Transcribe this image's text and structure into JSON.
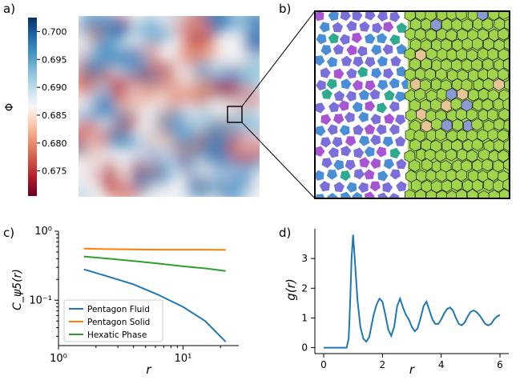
{
  "panels": {
    "a": "a)",
    "b": "b)",
    "c": "c)",
    "d": "d)"
  },
  "chart_data": [
    {
      "panel": "a",
      "type": "heatmap",
      "colorbar_label": "Φ",
      "colorbar_ticks": [
        "0.675",
        "0.680",
        "0.685",
        "0.690",
        "0.695",
        "0.700"
      ],
      "colorbar_tick_values": [
        0.675,
        0.68,
        0.685,
        0.69,
        0.695,
        0.7
      ],
      "colorbar_range": [
        0.6705,
        0.7025
      ],
      "colormap": [
        "#67001f",
        "#b2182b",
        "#d6604d",
        "#f4a582",
        "#fddbc7",
        "#f7f7f7",
        "#d1e5f0",
        "#92c5de",
        "#4393c3",
        "#2166ac",
        "#053061"
      ]
    },
    {
      "panel": "b",
      "type": "other",
      "description_left": "pentagon particles",
      "description_right": "voronoi tessellation",
      "colors": {
        "purple": "#a855d4",
        "violet": "#7b6fd9",
        "blue": "#4a8fd6",
        "teal": "#2eaa8f",
        "green": "#9fd44b",
        "tan": "#e5c593",
        "slate": "#8a9bd4"
      }
    },
    {
      "panel": "c",
      "type": "line",
      "xscale": "log",
      "yscale": "log",
      "xlabel": "r",
      "ylabel": "C_ψ5(r)",
      "xlim": [
        1,
        28
      ],
      "ylim": [
        0.022,
        1.0
      ],
      "xticks": [
        "10⁰",
        "10¹"
      ],
      "yticks": [
        "10⁻¹",
        "10⁰"
      ],
      "series": [
        {
          "name": "Pentagon Fluid",
          "color": "#1f77b4",
          "x": [
            1.6,
            2.5,
            4.0,
            6.3,
            10.0,
            15.0,
            22.0
          ],
          "y": [
            0.28,
            0.22,
            0.17,
            0.12,
            0.08,
            0.05,
            0.025
          ]
        },
        {
          "name": "Pentagon Solid",
          "color": "#ff7f0e",
          "x": [
            1.6,
            2.5,
            4.0,
            6.3,
            10.0,
            15.0,
            22.0
          ],
          "y": [
            0.56,
            0.55,
            0.545,
            0.54,
            0.54,
            0.54,
            0.535
          ]
        },
        {
          "name": "Hexatic Phase",
          "color": "#2ca02c",
          "x": [
            1.6,
            2.5,
            4.0,
            6.3,
            10.0,
            15.0,
            22.0
          ],
          "y": [
            0.43,
            0.4,
            0.37,
            0.34,
            0.31,
            0.29,
            0.265
          ]
        }
      ],
      "legend": "bottom-left"
    },
    {
      "panel": "d",
      "type": "line",
      "xlabel": "r",
      "ylabel": "g(r)",
      "xlim": [
        -0.3,
        6.3
      ],
      "ylim": [
        -0.2,
        4.0
      ],
      "xticks": [
        "0",
        "2",
        "4",
        "6"
      ],
      "xtick_values": [
        0,
        2,
        4,
        6
      ],
      "yticks": [
        "0",
        "1",
        "2",
        "3"
      ],
      "ytick_values": [
        0,
        1,
        2,
        3
      ],
      "series": [
        {
          "name": "g(r)",
          "color": "#1f77b4",
          "x": [
            0.0,
            0.5,
            0.78,
            0.85,
            0.9,
            0.95,
            1.0,
            1.05,
            1.15,
            1.25,
            1.35,
            1.45,
            1.55,
            1.7,
            1.8,
            1.9,
            2.0,
            2.1,
            2.2,
            2.3,
            2.4,
            2.5,
            2.6,
            2.7,
            2.8,
            2.9,
            3.0,
            3.1,
            3.2,
            3.3,
            3.4,
            3.5,
            3.6,
            3.7,
            3.8,
            3.9,
            4.0,
            4.1,
            4.2,
            4.3,
            4.4,
            4.5,
            4.6,
            4.7,
            4.8,
            4.9,
            5.0,
            5.1,
            5.2,
            5.3,
            5.4,
            5.5,
            5.6,
            5.7,
            5.8,
            5.9,
            6.0
          ],
          "y": [
            0.0,
            0.0,
            0.0,
            0.3,
            1.5,
            3.0,
            3.8,
            3.1,
            1.6,
            0.7,
            0.3,
            0.2,
            0.35,
            1.1,
            1.45,
            1.65,
            1.55,
            1.1,
            0.6,
            0.4,
            0.7,
            1.4,
            1.65,
            1.35,
            1.1,
            0.95,
            0.7,
            0.55,
            0.65,
            1.0,
            1.4,
            1.55,
            1.25,
            0.95,
            0.8,
            0.8,
            0.95,
            1.15,
            1.3,
            1.35,
            1.25,
            1.0,
            0.8,
            0.75,
            0.85,
            1.05,
            1.2,
            1.25,
            1.2,
            1.1,
            0.95,
            0.8,
            0.75,
            0.8,
            0.95,
            1.05,
            1.1
          ]
        }
      ]
    }
  ]
}
